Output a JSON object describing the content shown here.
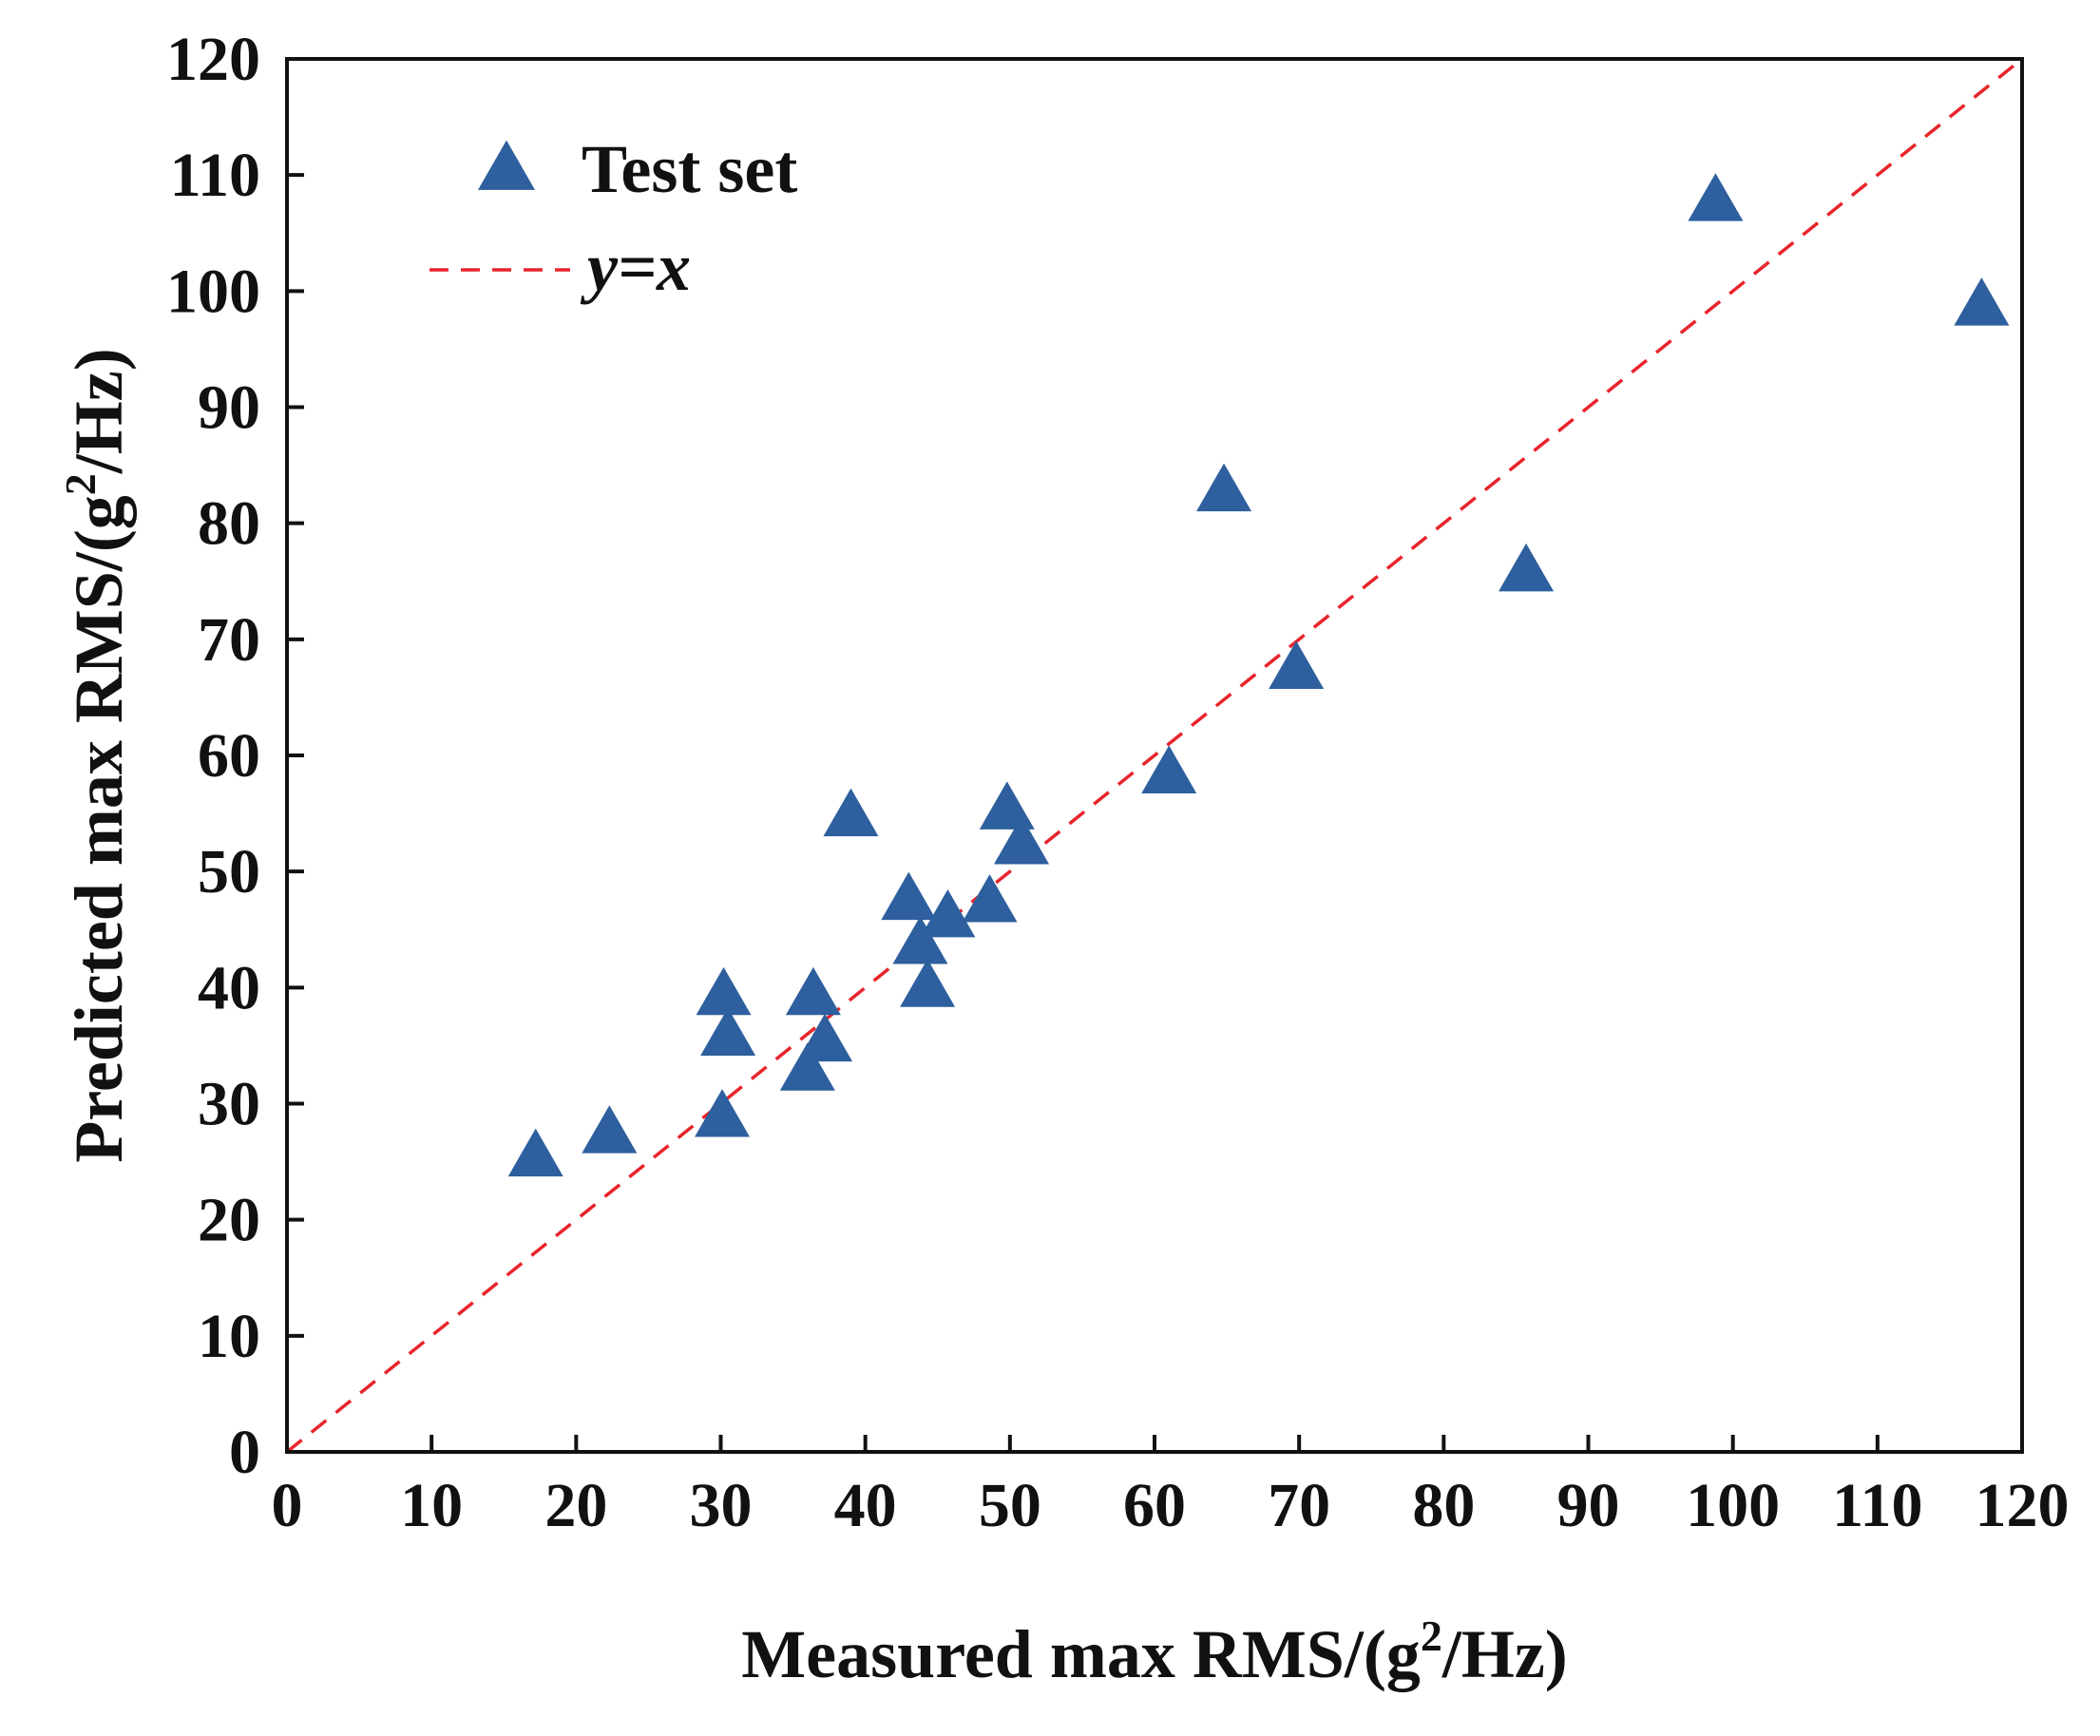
{
  "chart_data": {
    "type": "scatter",
    "title": "",
    "xlabel": "Measured max RMS/(g²/Hz)",
    "xlabel_parts": {
      "main": "Measured max RMS/(g",
      "sup": "2",
      "tail": "/Hz)"
    },
    "ylabel": "Predicted max RMS/(g²/Hz)",
    "ylabel_parts": {
      "main": "Predicted max RMS/(g",
      "sup": "2",
      "tail": "/Hz)"
    },
    "xlim": [
      0,
      120
    ],
    "ylim": [
      0,
      120
    ],
    "xticks": [
      0,
      10,
      20,
      30,
      40,
      50,
      60,
      70,
      80,
      90,
      100,
      110,
      120
    ],
    "yticks": [
      0,
      10,
      20,
      30,
      40,
      50,
      60,
      70,
      80,
      90,
      100,
      110,
      120
    ],
    "grid": false,
    "legend_position": "top-left",
    "series": [
      {
        "name": "Test set",
        "marker": "triangle",
        "color": "#2e5f9e",
        "points": [
          [
            17.2,
            25.3
          ],
          [
            22.3,
            27.3
          ],
          [
            30.1,
            28.7
          ],
          [
            30.2,
            39.2
          ],
          [
            30.5,
            35.7
          ],
          [
            36.0,
            32.7
          ],
          [
            36.4,
            39.2
          ],
          [
            37.2,
            35.2
          ],
          [
            39.0,
            54.6
          ],
          [
            43.0,
            47.4
          ],
          [
            43.8,
            43.6
          ],
          [
            44.3,
            39.9
          ],
          [
            45.7,
            45.9
          ],
          [
            48.6,
            47.2
          ],
          [
            49.8,
            55.2
          ],
          [
            50.8,
            52.2
          ],
          [
            61.0,
            58.3
          ],
          [
            64.8,
            82.6
          ],
          [
            69.8,
            67.3
          ],
          [
            85.7,
            75.7
          ],
          [
            98.8,
            107.6
          ],
          [
            117.2,
            98.6
          ]
        ]
      },
      {
        "name": "y=x",
        "style": "dashed-line",
        "color": "#e8242b",
        "points": [
          [
            0,
            0
          ],
          [
            120,
            120
          ]
        ]
      }
    ],
    "legend": [
      {
        "label": "Test set",
        "symbol": "triangle"
      },
      {
        "label": "y=x",
        "symbol": "dashed-line"
      }
    ]
  }
}
